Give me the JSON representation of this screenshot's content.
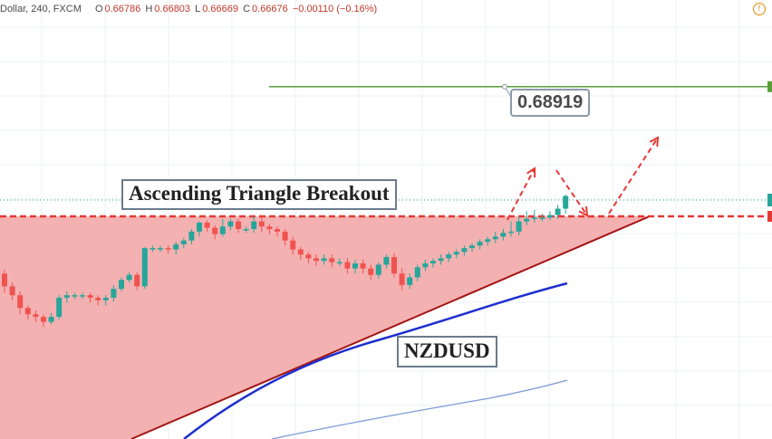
{
  "header": {
    "symbol": "Dollar, 240, FXCM",
    "open_label": "O",
    "open": "0.66786",
    "high_label": "H",
    "high": "0.66803",
    "low_label": "L",
    "low": "0.66669",
    "close_label": "C",
    "close": "0.66676",
    "change": "−0.00110 (−0.16%)"
  },
  "annotations": {
    "title": "Ascending Triangle Breakout",
    "pair": "NZDUSD",
    "target_level": "0.68919"
  },
  "colors": {
    "up": "#26a69a",
    "down": "#ef5350",
    "triangle_fill": "#f2a3a3",
    "resistance": "#e53935",
    "support": "#a31515",
    "target_line": "#5a9e3a",
    "ma_fast": "#1f2fd0",
    "ma_slow": "#7a99d6",
    "arrows": "#e53935"
  },
  "chart_data": {
    "type": "candlestick",
    "price_range": [
      0.6615,
      0.696
    ],
    "target_level": 0.68919,
    "resistance_level": 0.679,
    "candles": [
      [
        0.6745,
        0.6735,
        0.673,
        0.6748
      ],
      [
        0.6735,
        0.6728,
        0.6724,
        0.6738
      ],
      [
        0.6728,
        0.6718,
        0.6713,
        0.6731
      ],
      [
        0.6718,
        0.6713,
        0.6709,
        0.672
      ],
      [
        0.6713,
        0.6711,
        0.6707,
        0.6716
      ],
      [
        0.6711,
        0.6707,
        0.6703,
        0.6713
      ],
      [
        0.6707,
        0.6711,
        0.6705,
        0.6714
      ],
      [
        0.6711,
        0.6726,
        0.6709,
        0.6728
      ],
      [
        0.6726,
        0.6728,
        0.6722,
        0.6731
      ],
      [
        0.6728,
        0.6728,
        0.6725,
        0.673
      ],
      [
        0.6728,
        0.6728,
        0.6725,
        0.673
      ],
      [
        0.6728,
        0.6726,
        0.6722,
        0.673
      ],
      [
        0.6726,
        0.6724,
        0.672,
        0.6728
      ],
      [
        0.6724,
        0.6726,
        0.672,
        0.6728
      ],
      [
        0.6726,
        0.6733,
        0.6723,
        0.6736
      ],
      [
        0.6733,
        0.674,
        0.6731,
        0.6742
      ],
      [
        0.674,
        0.6744,
        0.6738,
        0.6746
      ],
      [
        0.6744,
        0.6735,
        0.6732,
        0.6746
      ],
      [
        0.6735,
        0.6765,
        0.6733,
        0.6766
      ],
      [
        0.6765,
        0.6765,
        0.6762,
        0.6767
      ],
      [
        0.6765,
        0.6765,
        0.6762,
        0.6767
      ],
      [
        0.6765,
        0.6764,
        0.6761,
        0.6767
      ],
      [
        0.6764,
        0.6768,
        0.676,
        0.677
      ],
      [
        0.6768,
        0.6771,
        0.6765,
        0.6773
      ],
      [
        0.6771,
        0.6778,
        0.6768,
        0.678
      ],
      [
        0.6778,
        0.6785,
        0.6774,
        0.6786
      ],
      [
        0.6785,
        0.6781,
        0.6778,
        0.6787
      ],
      [
        0.6781,
        0.6776,
        0.6772,
        0.6783
      ],
      [
        0.6776,
        0.6782,
        0.6774,
        0.6788
      ],
      [
        0.6782,
        0.6786,
        0.6779,
        0.6788
      ],
      [
        0.6786,
        0.678,
        0.6777,
        0.6788
      ],
      [
        0.678,
        0.678,
        0.6777,
        0.6782
      ],
      [
        0.678,
        0.6786,
        0.6777,
        0.679
      ],
      [
        0.6786,
        0.6782,
        0.6778,
        0.679
      ],
      [
        0.6782,
        0.678,
        0.6776,
        0.6784
      ],
      [
        0.678,
        0.6778,
        0.6774,
        0.6782
      ],
      [
        0.6778,
        0.6771,
        0.6767,
        0.678
      ],
      [
        0.6771,
        0.6764,
        0.676,
        0.6774
      ],
      [
        0.6764,
        0.676,
        0.6756,
        0.6766
      ],
      [
        0.676,
        0.6757,
        0.6753,
        0.6762
      ],
      [
        0.6757,
        0.6755,
        0.6751,
        0.676
      ],
      [
        0.6755,
        0.6757,
        0.6752,
        0.676
      ],
      [
        0.6757,
        0.6754,
        0.675,
        0.676
      ],
      [
        0.6754,
        0.6754,
        0.6751,
        0.6757
      ],
      [
        0.6754,
        0.6749,
        0.6745,
        0.6757
      ],
      [
        0.6749,
        0.6753,
        0.6745,
        0.6756
      ],
      [
        0.6753,
        0.6749,
        0.6745,
        0.6756
      ],
      [
        0.6749,
        0.6744,
        0.674,
        0.6752
      ],
      [
        0.6744,
        0.6752,
        0.6741,
        0.6754
      ],
      [
        0.6752,
        0.6758,
        0.6749,
        0.676
      ],
      [
        0.6758,
        0.6745,
        0.6742,
        0.6761
      ],
      [
        0.6745,
        0.6736,
        0.6732,
        0.6749
      ],
      [
        0.6736,
        0.6742,
        0.6733,
        0.6745
      ],
      [
        0.6742,
        0.675,
        0.6739,
        0.6752
      ],
      [
        0.675,
        0.6753,
        0.6747,
        0.6756
      ],
      [
        0.6753,
        0.6755,
        0.675,
        0.6757
      ],
      [
        0.6755,
        0.6757,
        0.6752,
        0.676
      ],
      [
        0.6757,
        0.676,
        0.6754,
        0.6762
      ],
      [
        0.676,
        0.6762,
        0.6757,
        0.6764
      ],
      [
        0.6762,
        0.6765,
        0.6759,
        0.6767
      ],
      [
        0.6765,
        0.6767,
        0.6762,
        0.6769
      ],
      [
        0.6767,
        0.677,
        0.6764,
        0.6772
      ],
      [
        0.677,
        0.6772,
        0.6767,
        0.6774
      ],
      [
        0.6772,
        0.6774,
        0.6769,
        0.6778
      ],
      [
        0.6774,
        0.6777,
        0.6771,
        0.678
      ],
      [
        0.6777,
        0.6778,
        0.6774,
        0.6786
      ],
      [
        0.6778,
        0.6786,
        0.6775,
        0.679
      ],
      [
        0.6786,
        0.6788,
        0.6783,
        0.6794
      ],
      [
        0.6788,
        0.6789,
        0.6785,
        0.6795
      ],
      [
        0.6789,
        0.6789,
        0.6786,
        0.6792
      ],
      [
        0.6789,
        0.6791,
        0.6787,
        0.6794
      ],
      [
        0.6791,
        0.6796,
        0.6788,
        0.6799
      ],
      [
        0.6796,
        0.6806,
        0.6792,
        0.6807
      ]
    ]
  }
}
